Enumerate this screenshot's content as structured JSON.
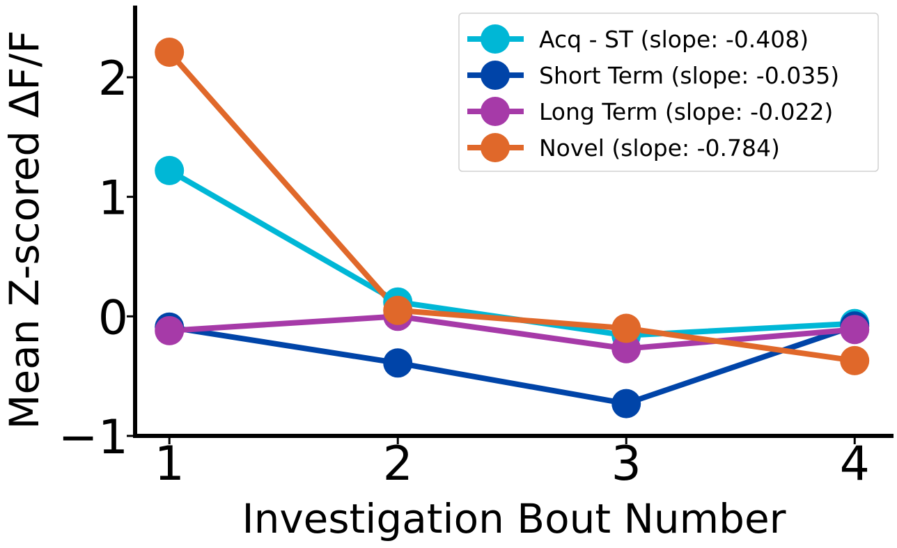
{
  "chart_data": {
    "type": "line",
    "xlabel": "Investigation Bout Number",
    "ylabel": "Mean Z-scored ΔF/F",
    "x": [
      1,
      2,
      3,
      4
    ],
    "xticks": [
      "1",
      "2",
      "3",
      "4"
    ],
    "yticks": [
      -1,
      0,
      1,
      2
    ],
    "ytick_labels": [
      "−1",
      "0",
      "1",
      "2"
    ],
    "xlim": [
      0.85,
      4.17
    ],
    "ylim": [
      -1.0,
      2.6
    ],
    "grid": false,
    "legend_position": "top-right",
    "series": [
      {
        "name": "Acq - ST (slope: -0.408)",
        "color": "#00b7d6",
        "values": [
          1.22,
          0.12,
          -0.16,
          -0.06
        ]
      },
      {
        "name": "Short Term (slope: -0.035)",
        "color": "#0044a8",
        "values": [
          -0.09,
          -0.39,
          -0.73,
          -0.08
        ]
      },
      {
        "name": "Long Term (slope: -0.022)",
        "color": "#a63aa8",
        "values": [
          -0.12,
          0.0,
          -0.27,
          -0.11
        ]
      },
      {
        "name": "Novel (slope: -0.784)",
        "color": "#e0682a",
        "values": [
          2.21,
          0.05,
          -0.1,
          -0.37
        ]
      }
    ]
  }
}
